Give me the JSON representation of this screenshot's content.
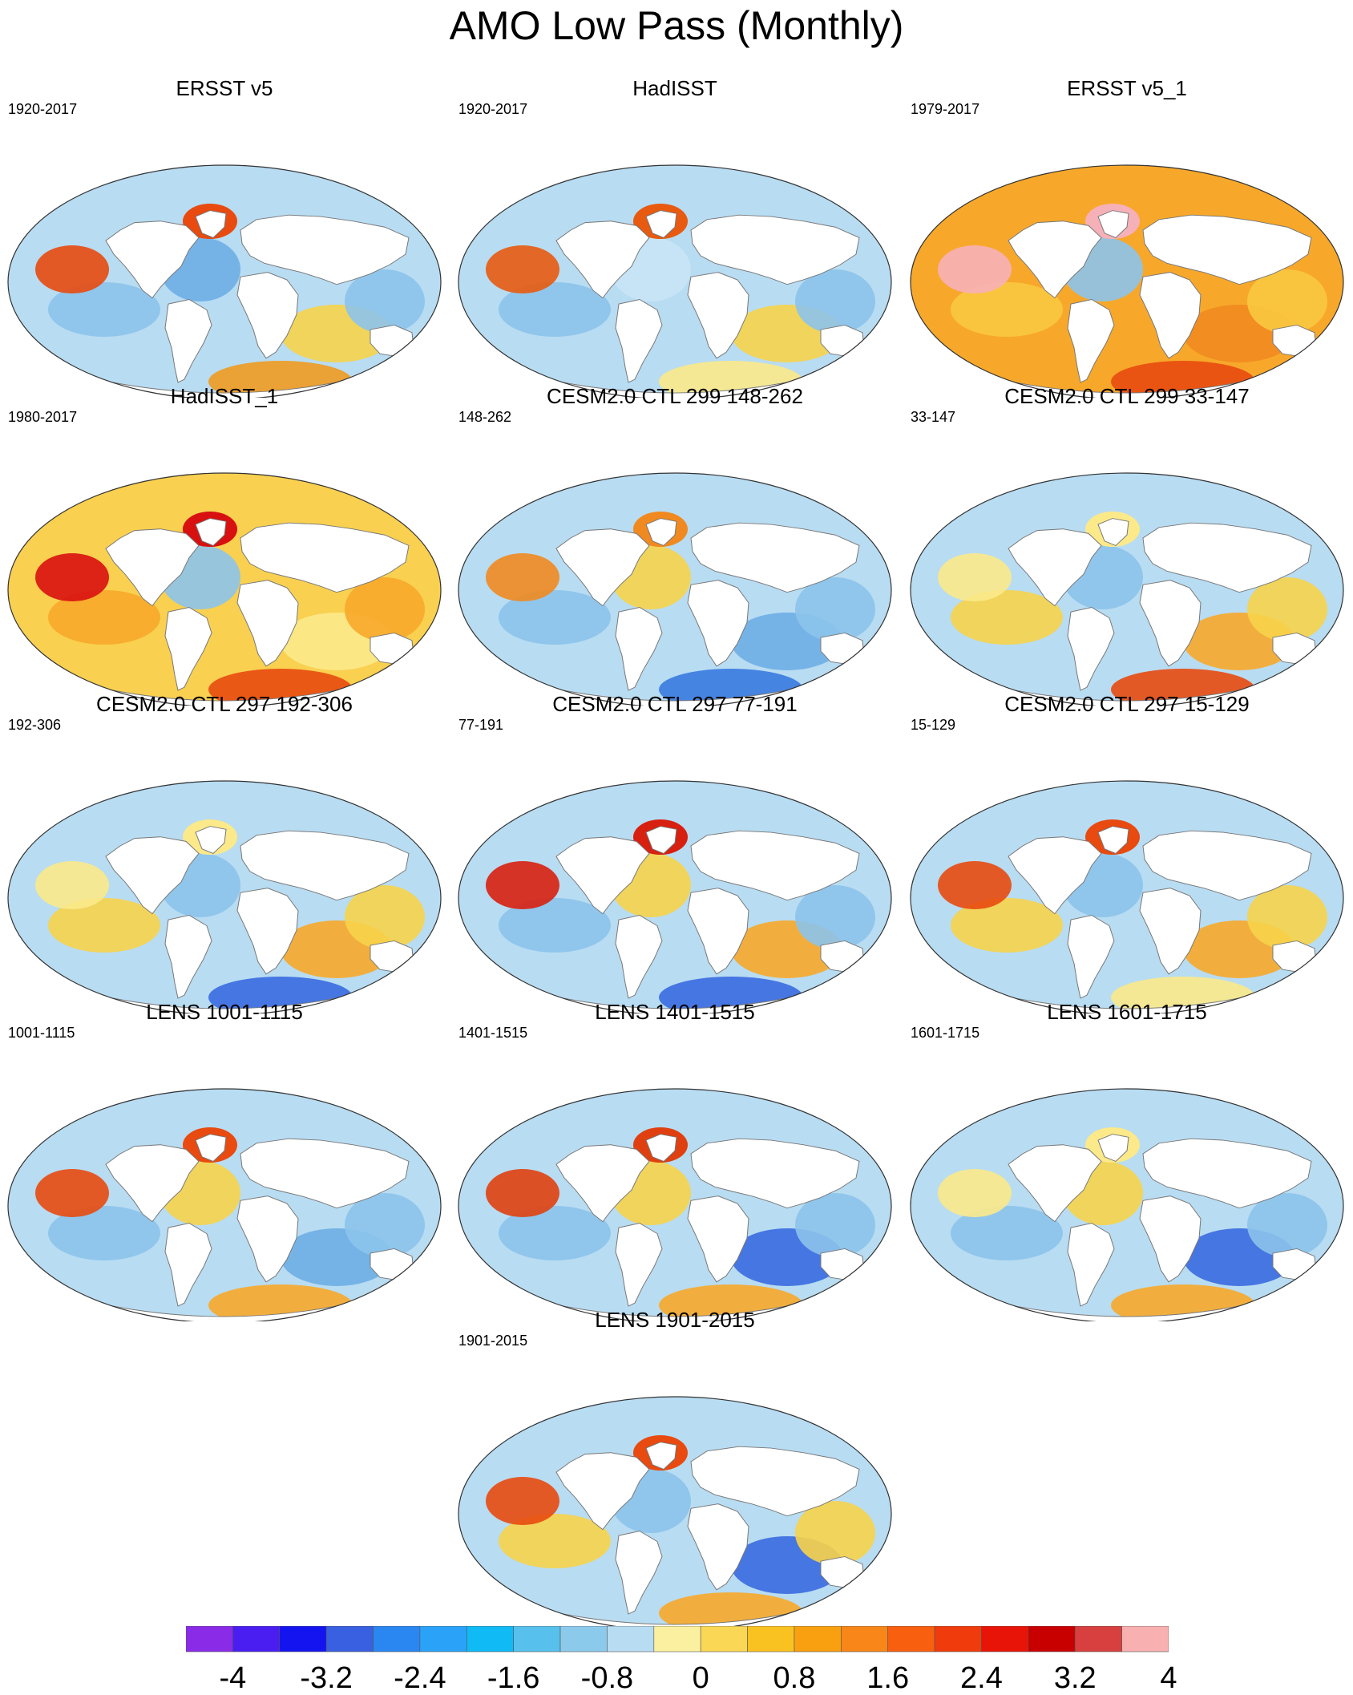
{
  "title": "AMO Low Pass (Monthly)",
  "panels": [
    {
      "title": "ERSST v5",
      "years": "1920-2017",
      "palette": [
        "#b8dcf2",
        "#8cc3eb",
        "#6eaee6",
        "#f7d34a",
        "#f09a20",
        "#e84a10"
      ]
    },
    {
      "title": "HadISST",
      "years": "1920-2017",
      "palette": [
        "#b8dcf2",
        "#8cc3eb",
        "#c8e4f6",
        "#f7d34a",
        "#fbe98a",
        "#e85a10"
      ]
    },
    {
      "title": "ERSST v5_1",
      "years": "1979-2017",
      "palette": [
        "#f7a82a",
        "#f9c840",
        "#8cc3eb",
        "#f08a20",
        "#e84a10",
        "#f6b0b8"
      ]
    },
    {
      "title": "HadISST_1",
      "years": "1980-2017",
      "palette": [
        "#f9d050",
        "#f7a82a",
        "#8cc3eb",
        "#fbe98a",
        "#e84a10",
        "#d81010"
      ]
    },
    {
      "title": "CESM2.0 CTL 299 148-262",
      "years": "148-262",
      "palette": [
        "#b8dcf2",
        "#8cc3eb",
        "#f7d34a",
        "#6eaee6",
        "#3a7ae0",
        "#f08a20"
      ]
    },
    {
      "title": "CESM2.0 CTL 299 33-147",
      "years": "33-147",
      "palette": [
        "#b8dcf2",
        "#f7d34a",
        "#8cc3eb",
        "#f7a82a",
        "#e84a10",
        "#fbe98a"
      ]
    },
    {
      "title": "CESM2.0 CTL 297 192-306",
      "years": "192-306",
      "palette": [
        "#b8dcf2",
        "#f7d34a",
        "#8cc3eb",
        "#f7a82a",
        "#3a6ae0",
        "#fbe98a"
      ]
    },
    {
      "title": "CESM2.0 CTL 297 77-191",
      "years": "77-191",
      "palette": [
        "#b8dcf2",
        "#8cc3eb",
        "#f7d34a",
        "#f7a82a",
        "#3a6ae0",
        "#d82010"
      ]
    },
    {
      "title": "CESM2.0 CTL 297 15-129",
      "years": "15-129",
      "palette": [
        "#b8dcf2",
        "#f7d34a",
        "#8cc3eb",
        "#f7a82a",
        "#fbe98a",
        "#e84a10"
      ]
    },
    {
      "title": "LENS 1001-1115",
      "years": "1001-1115",
      "palette": [
        "#b8dcf2",
        "#8cc3eb",
        "#f7d34a",
        "#6eaee6",
        "#f7a82a",
        "#e84a10"
      ]
    },
    {
      "title": "LENS 1401-1515",
      "years": "1401-1515",
      "palette": [
        "#b8dcf2",
        "#8cc3eb",
        "#f7d34a",
        "#3a6ae0",
        "#f7a82a",
        "#e04010"
      ]
    },
    {
      "title": "LENS 1601-1715",
      "years": "1601-1715",
      "palette": [
        "#b8dcf2",
        "#8cc3eb",
        "#f7d34a",
        "#3a6ae0",
        "#f7a82a",
        "#fbe98a"
      ]
    },
    {
      "title": "LENS 1901-2015",
      "years": "1901-2015",
      "palette": [
        "#b8dcf2",
        "#f7d34a",
        "#8cc3eb",
        "#3a6ae0",
        "#f7a82a",
        "#e84a10"
      ]
    }
  ],
  "colorbar": {
    "colors": [
      "#8a2be8",
      "#4a1ef0",
      "#1414f0",
      "#3860e0",
      "#2a86f0",
      "#2aa2f8",
      "#10baf4",
      "#58c0ec",
      "#8ccaec",
      "#b8dcf2",
      "#fbf0a0",
      "#fad855",
      "#fac220",
      "#f8a010",
      "#f88618",
      "#f86010",
      "#f03c0c",
      "#e81408",
      "#c80000",
      "#d84040",
      "#f8b0b0"
    ],
    "labels": [
      "-4",
      "-3.2",
      "-2.4",
      "-1.6",
      "-0.8",
      "0",
      "0.8",
      "1.6",
      "2.4",
      "3.2",
      "4"
    ]
  }
}
